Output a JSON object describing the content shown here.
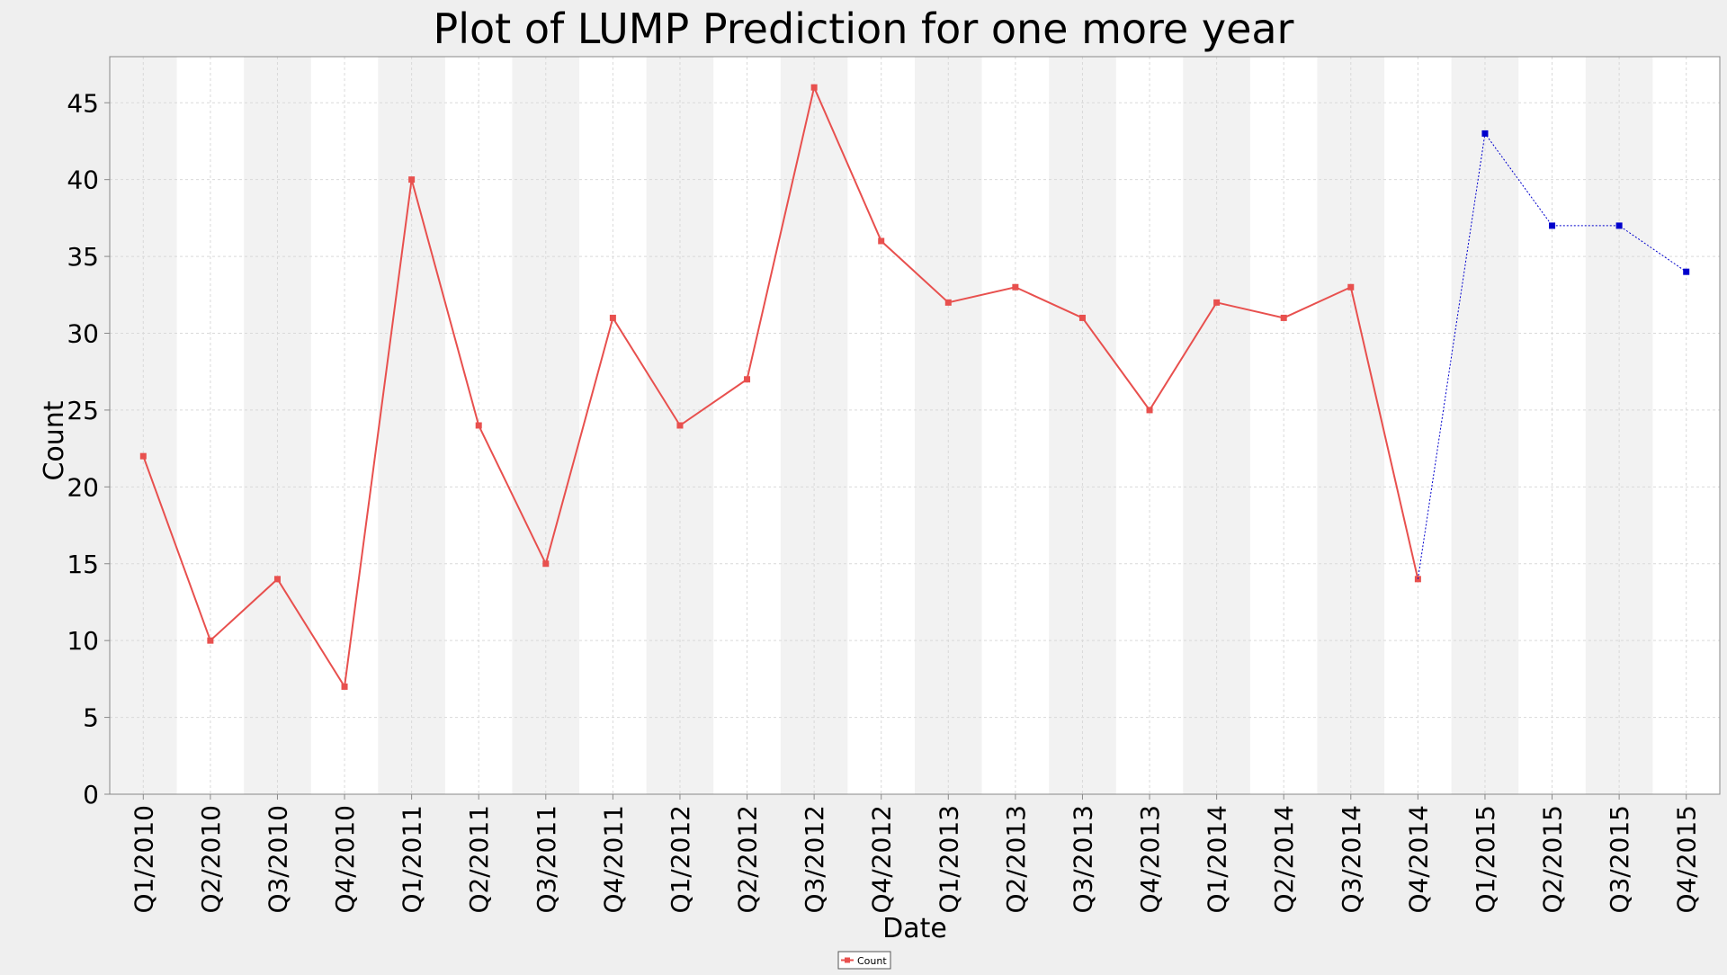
{
  "chart_data": {
    "type": "line",
    "title": "Plot of LUMP Prediction for one more year",
    "xlabel": "Date",
    "ylabel": "Count",
    "ylim": [
      0,
      48
    ],
    "yticks": [
      0,
      5,
      10,
      15,
      20,
      25,
      30,
      35,
      40,
      45
    ],
    "grid": true,
    "legend_position": "bottom-center",
    "categories": [
      "Q1/2010",
      "Q2/2010",
      "Q3/2010",
      "Q4/2010",
      "Q1/2011",
      "Q2/2011",
      "Q3/2011",
      "Q4/2011",
      "Q1/2012",
      "Q2/2012",
      "Q3/2012",
      "Q4/2012",
      "Q1/2013",
      "Q2/2013",
      "Q3/2013",
      "Q4/2013",
      "Q1/2014",
      "Q2/2014",
      "Q3/2014",
      "Q4/2014",
      "Q1/2015",
      "Q2/2015",
      "Q3/2015",
      "Q4/2015"
    ],
    "series": [
      {
        "name": "Count",
        "color": "#e8504e",
        "values": [
          22,
          10,
          14,
          7,
          40,
          24,
          15,
          31,
          24,
          27,
          46,
          36,
          32,
          33,
          31,
          25,
          32,
          31,
          33,
          14,
          null,
          null,
          null,
          null
        ]
      },
      {
        "color": "#0000cc",
        "dashed": true,
        "values": [
          null,
          null,
          null,
          null,
          null,
          null,
          null,
          null,
          null,
          null,
          null,
          null,
          null,
          null,
          null,
          null,
          null,
          null,
          null,
          14,
          43,
          37,
          37,
          34
        ]
      }
    ],
    "legend": [
      "Count"
    ]
  },
  "colors": {
    "page_background": "#efefef",
    "plot_background": "#ffffff",
    "band_shade": "#f2f2f2",
    "gridline": "#d9d9d9",
    "axis": "#888888"
  }
}
